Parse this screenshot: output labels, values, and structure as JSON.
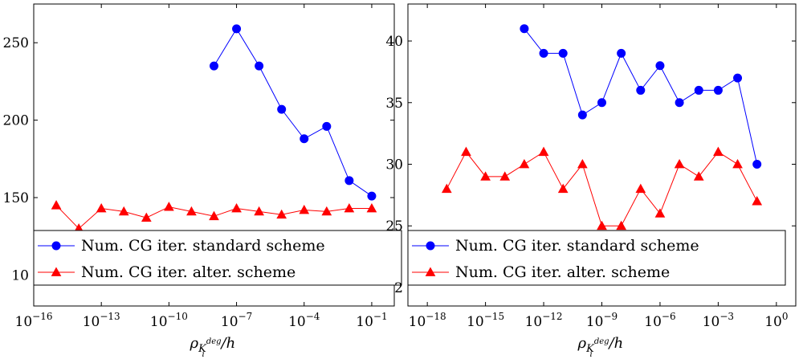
{
  "chart_data": [
    {
      "type": "line",
      "x_scale": "log",
      "xlim_exp": [
        -16,
        0
      ],
      "ylim": [
        80,
        275
      ],
      "xtick_exps": [
        -16,
        -13,
        -10,
        -7,
        -4,
        -1
      ],
      "ytick_values": [
        150,
        200,
        250
      ],
      "ytick_partial": {
        "value": 100,
        "label": "10"
      },
      "xlabel": {
        "base": "ρ",
        "sub": "K",
        "subsub": "i",
        "sup": "deg",
        "tail": "/h"
      },
      "legend": {
        "position": "bottom-left"
      },
      "series": [
        {
          "name": "Num. CG iter. standard scheme",
          "color": "#0000ff",
          "marker": "circle",
          "x_exps": [
            -8,
            -7,
            -6,
            -5,
            -4,
            -3,
            -2,
            -1
          ],
          "values": [
            235,
            259,
            235,
            207,
            188,
            196,
            161,
            151
          ]
        },
        {
          "name": "Num. CG iter. alter. scheme",
          "color": "#ff0000",
          "marker": "triangle",
          "x_exps": [
            -15,
            -14,
            -13,
            -12,
            -11,
            -10,
            -9,
            -8,
            -7,
            -6,
            -5,
            -4,
            -3,
            -2,
            -1
          ],
          "values": [
            145,
            130,
            143,
            141,
            137,
            144,
            141,
            138,
            143,
            141,
            139,
            142,
            141,
            143,
            143
          ]
        }
      ]
    },
    {
      "type": "line",
      "x_scale": "log",
      "xlim_exp": [
        -19,
        1
      ],
      "ylim": [
        18.5,
        43
      ],
      "xtick_exps": [
        -18,
        -15,
        -12,
        -9,
        -6,
        -3,
        0
      ],
      "ytick_values": [
        25,
        30,
        35,
        40
      ],
      "ytick_partial": {
        "value": 20,
        "label": "2"
      },
      "xlabel": {
        "base": "ρ",
        "sub": "K",
        "subsub": "i",
        "sup": "deg",
        "tail": "/h"
      },
      "legend": {
        "position": "bottom-left"
      },
      "series": [
        {
          "name": "Num. CG iter. standard scheme",
          "color": "#0000ff",
          "marker": "circle",
          "x_exps": [
            -13,
            -12,
            -11,
            -10,
            -9,
            -8,
            -7,
            -6,
            -5,
            -4,
            -3,
            -2,
            -1
          ],
          "values": [
            41,
            39,
            39,
            34,
            35,
            39,
            36,
            38,
            35,
            36,
            36,
            37,
            30
          ]
        },
        {
          "name": "Num. CG iter. alter. scheme",
          "color": "#ff0000",
          "marker": "triangle",
          "x_exps": [
            -17,
            -16,
            -15,
            -14,
            -13,
            -12,
            -11,
            -10,
            -9,
            -8,
            -7,
            -6,
            -5,
            -4,
            -3,
            -2,
            -1
          ],
          "values": [
            28,
            31,
            29,
            29,
            30,
            31,
            28,
            30,
            25,
            25,
            28,
            26,
            30,
            29,
            31,
            30,
            27
          ]
        }
      ]
    }
  ]
}
